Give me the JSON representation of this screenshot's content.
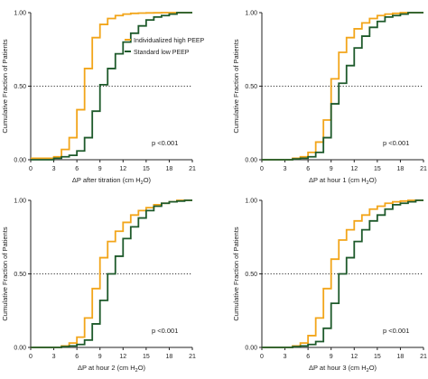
{
  "colors": {
    "high_peep": "#f2a51a",
    "low_peep": "#1e5a2b",
    "axis": "#222222"
  },
  "legend": [
    {
      "label": "Individualized high PEEP",
      "color": "#f2a51a"
    },
    {
      "label": "Standard low PEEP",
      "color": "#1e5a2b"
    }
  ],
  "chart_data": [
    {
      "type": "line",
      "step": true,
      "title": "",
      "xlabel_main": "ΔP after titration (cm H",
      "xlabel_sub": "2",
      "xlabel_end": "O)",
      "ylabel": "Cumulative Fraction of Patients",
      "xlim": [
        0,
        21
      ],
      "ylim": [
        0,
        1
      ],
      "xticks": [
        "0",
        "3",
        "6",
        "9",
        "12",
        "15",
        "18",
        "21"
      ],
      "yticks": [
        "0.00",
        "0.50",
        "1.00"
      ],
      "reference_line": 0.5,
      "pvalue": "p <0.001",
      "legend": true,
      "series": [
        {
          "name": "Individualized high PEEP",
          "color": "#f2a51a",
          "x": [
            0,
            3,
            4,
            5,
            6,
            7,
            8,
            9,
            10,
            11,
            12,
            13,
            14,
            15,
            16,
            17,
            18,
            19,
            21
          ],
          "y": [
            0.01,
            0.02,
            0.07,
            0.15,
            0.34,
            0.62,
            0.83,
            0.92,
            0.96,
            0.98,
            0.99,
            0.995,
            0.997,
            0.998,
            0.999,
            1.0,
            1.0,
            1.0,
            1.0
          ]
        },
        {
          "name": "Standard low PEEP",
          "color": "#1e5a2b",
          "x": [
            0,
            3,
            4,
            5,
            6,
            7,
            8,
            9,
            10,
            11,
            12,
            13,
            14,
            15,
            16,
            17,
            18,
            19,
            21
          ],
          "y": [
            0.0,
            0.01,
            0.02,
            0.03,
            0.06,
            0.15,
            0.33,
            0.51,
            0.62,
            0.72,
            0.8,
            0.86,
            0.91,
            0.95,
            0.97,
            0.98,
            0.99,
            1.0,
            1.0
          ]
        }
      ]
    },
    {
      "type": "line",
      "step": true,
      "title": "",
      "xlabel_main": "ΔP at hour 1 (cm H",
      "xlabel_sub": "2",
      "xlabel_end": "O)",
      "ylabel": "Cumulative Fraction of Patients",
      "xlim": [
        0,
        21
      ],
      "ylim": [
        0,
        1
      ],
      "xticks": [
        "0",
        "3",
        "6",
        "9",
        "12",
        "15",
        "18",
        "21"
      ],
      "yticks": [
        "0.00",
        "0.50",
        "1.00"
      ],
      "reference_line": 0.5,
      "pvalue": "p <0.001",
      "legend": false,
      "series": [
        {
          "name": "Individualized high PEEP",
          "color": "#f2a51a",
          "x": [
            0,
            4,
            5,
            6,
            7,
            8,
            9,
            10,
            11,
            12,
            13,
            14,
            15,
            16,
            17,
            18,
            19,
            20,
            21
          ],
          "y": [
            0.0,
            0.01,
            0.02,
            0.05,
            0.12,
            0.27,
            0.55,
            0.73,
            0.83,
            0.89,
            0.93,
            0.96,
            0.98,
            0.99,
            0.995,
            1.0,
            1.0,
            1.0,
            1.0
          ]
        },
        {
          "name": "Standard low PEEP",
          "color": "#1e5a2b",
          "x": [
            0,
            4,
            5,
            6,
            7,
            8,
            9,
            10,
            11,
            12,
            13,
            14,
            15,
            16,
            17,
            18,
            19,
            20,
            21
          ],
          "y": [
            0.0,
            0.005,
            0.01,
            0.02,
            0.05,
            0.15,
            0.38,
            0.52,
            0.64,
            0.76,
            0.84,
            0.9,
            0.94,
            0.97,
            0.98,
            0.99,
            1.0,
            1.0,
            1.0
          ]
        }
      ]
    },
    {
      "type": "line",
      "step": true,
      "title": "",
      "xlabel_main": "ΔP at hour 2 (cm H",
      "xlabel_sub": "2",
      "xlabel_end": "O)",
      "ylabel": "Cumulative Fraction of Patients",
      "xlim": [
        0,
        21
      ],
      "ylim": [
        0,
        1
      ],
      "xticks": [
        "0",
        "3",
        "6",
        "9",
        "12",
        "15",
        "18",
        "21"
      ],
      "yticks": [
        "0.00",
        "0.50",
        "1.00"
      ],
      "reference_line": 0.5,
      "pvalue": "p <0.001",
      "legend": false,
      "series": [
        {
          "name": "Individualized high PEEP",
          "color": "#f2a51a",
          "x": [
            0,
            4,
            5,
            6,
            7,
            8,
            9,
            10,
            11,
            12,
            13,
            14,
            15,
            16,
            17,
            18,
            19,
            20,
            21
          ],
          "y": [
            0.0,
            0.01,
            0.03,
            0.07,
            0.2,
            0.4,
            0.61,
            0.72,
            0.79,
            0.85,
            0.9,
            0.93,
            0.95,
            0.97,
            0.98,
            0.99,
            1.0,
            1.0,
            1.0
          ]
        },
        {
          "name": "Standard low PEEP",
          "color": "#1e5a2b",
          "x": [
            0,
            4,
            5,
            6,
            7,
            8,
            9,
            10,
            11,
            12,
            13,
            14,
            15,
            16,
            17,
            18,
            19,
            20,
            21
          ],
          "y": [
            0.0,
            0.005,
            0.01,
            0.02,
            0.05,
            0.16,
            0.32,
            0.5,
            0.62,
            0.74,
            0.82,
            0.88,
            0.93,
            0.96,
            0.98,
            0.99,
            0.995,
            1.0,
            1.0
          ]
        }
      ]
    },
    {
      "type": "line",
      "step": true,
      "title": "",
      "xlabel_main": "ΔP at hour 3 (cm H",
      "xlabel_sub": "2",
      "xlabel_end": "O)",
      "ylabel": "Cumulative Fraction of Patients",
      "xlim": [
        0,
        21
      ],
      "ylim": [
        0,
        1
      ],
      "xticks": [
        "0",
        "3",
        "6",
        "9",
        "12",
        "15",
        "18",
        "21"
      ],
      "yticks": [
        "0.00",
        "0.50",
        "1.00"
      ],
      "reference_line": 0.5,
      "pvalue": "p <0.001",
      "legend": false,
      "series": [
        {
          "name": "Individualized high PEEP",
          "color": "#f2a51a",
          "x": [
            0,
            4,
            5,
            6,
            7,
            8,
            9,
            10,
            11,
            12,
            13,
            14,
            15,
            16,
            17,
            18,
            19,
            20,
            21
          ],
          "y": [
            0.0,
            0.01,
            0.03,
            0.08,
            0.2,
            0.4,
            0.6,
            0.73,
            0.8,
            0.86,
            0.9,
            0.94,
            0.96,
            0.98,
            0.99,
            0.995,
            1.0,
            1.0,
            1.0
          ]
        },
        {
          "name": "Standard low PEEP",
          "color": "#1e5a2b",
          "x": [
            0,
            4,
            5,
            6,
            7,
            8,
            9,
            10,
            11,
            12,
            13,
            14,
            15,
            16,
            17,
            18,
            19,
            20,
            21
          ],
          "y": [
            0.0,
            0.005,
            0.01,
            0.02,
            0.04,
            0.13,
            0.3,
            0.5,
            0.61,
            0.72,
            0.8,
            0.86,
            0.9,
            0.94,
            0.97,
            0.98,
            0.99,
            1.0,
            1.0
          ]
        }
      ]
    }
  ]
}
